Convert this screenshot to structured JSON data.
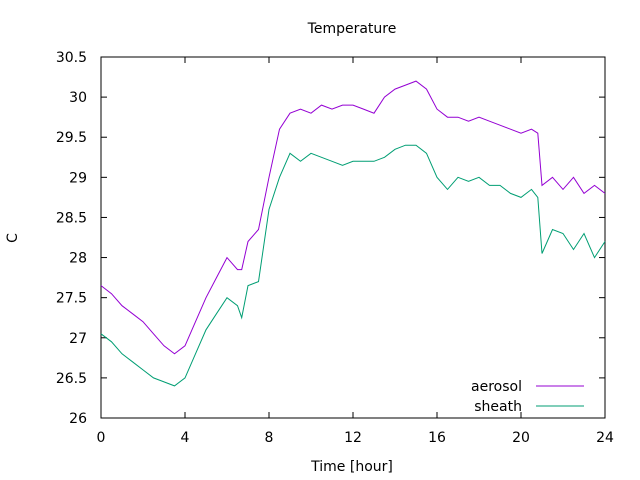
{
  "chart_data": {
    "type": "line",
    "title": "Temperature",
    "xlabel": "Time [hour]",
    "ylabel": "C",
    "xlim": [
      0,
      24
    ],
    "ylim": [
      26,
      30.5
    ],
    "xticks": [
      0,
      4,
      8,
      12,
      16,
      20,
      24
    ],
    "yticks": [
      26,
      26.5,
      27,
      27.5,
      28,
      28.5,
      29,
      29.5,
      30,
      30.5
    ],
    "xtick_labels": [
      "0",
      "4",
      "8",
      "12",
      "16",
      "20",
      "24"
    ],
    "ytick_labels": [
      "26",
      "26.5",
      "27",
      "27.5",
      "28",
      "28.5",
      "29",
      "29.5",
      "30",
      "30.5"
    ],
    "grid": false,
    "legend_position": "bottom-right",
    "series": [
      {
        "name": "aerosol",
        "color": "#9400d3",
        "x": [
          0,
          0.5,
          1,
          1.5,
          2,
          2.5,
          3,
          3.5,
          4,
          4.5,
          5,
          5.5,
          6,
          6.5,
          6.7,
          7,
          7.5,
          8,
          8.5,
          9,
          9.5,
          10,
          10.5,
          11,
          11.5,
          12,
          12.5,
          13,
          13.5,
          14,
          14.5,
          15,
          15.5,
          16,
          16.5,
          17,
          17.5,
          18,
          18.5,
          19,
          19.5,
          20,
          20.5,
          20.8,
          21,
          21.5,
          22,
          22.5,
          23,
          23.5,
          24
        ],
        "y": [
          27.65,
          27.55,
          27.4,
          27.3,
          27.2,
          27.05,
          26.9,
          26.8,
          26.9,
          27.2,
          27.5,
          27.75,
          28.0,
          27.85,
          27.85,
          28.2,
          28.35,
          29.0,
          29.6,
          29.8,
          29.85,
          29.8,
          29.9,
          29.85,
          29.9,
          29.9,
          29.85,
          29.8,
          30.0,
          30.1,
          30.15,
          30.2,
          30.1,
          29.85,
          29.75,
          29.75,
          29.7,
          29.75,
          29.7,
          29.65,
          29.6,
          29.55,
          29.6,
          29.55,
          28.9,
          29.0,
          28.85,
          29.0,
          28.8,
          28.9,
          28.8
        ]
      },
      {
        "name": "sheath",
        "color": "#009e73",
        "x": [
          0,
          0.5,
          1,
          1.5,
          2,
          2.5,
          3,
          3.5,
          4,
          4.5,
          5,
          5.5,
          6,
          6.5,
          6.7,
          7,
          7.5,
          8,
          8.5,
          9,
          9.5,
          10,
          10.5,
          11,
          11.5,
          12,
          12.5,
          13,
          13.5,
          14,
          14.5,
          15,
          15.5,
          16,
          16.5,
          17,
          17.5,
          18,
          18.5,
          19,
          19.5,
          20,
          20.5,
          20.8,
          21,
          21.5,
          22,
          22.5,
          23,
          23.5,
          24
        ],
        "y": [
          27.05,
          26.95,
          26.8,
          26.7,
          26.6,
          26.5,
          26.45,
          26.4,
          26.5,
          26.8,
          27.1,
          27.3,
          27.5,
          27.4,
          27.25,
          27.65,
          27.7,
          28.6,
          29.0,
          29.3,
          29.2,
          29.3,
          29.25,
          29.2,
          29.15,
          29.2,
          29.2,
          29.2,
          29.25,
          29.35,
          29.4,
          29.4,
          29.3,
          29.0,
          28.85,
          29.0,
          28.95,
          29.0,
          28.9,
          28.9,
          28.8,
          28.75,
          28.85,
          28.75,
          28.05,
          28.35,
          28.3,
          28.1,
          28.3,
          28.0,
          28.2
        ]
      }
    ]
  }
}
